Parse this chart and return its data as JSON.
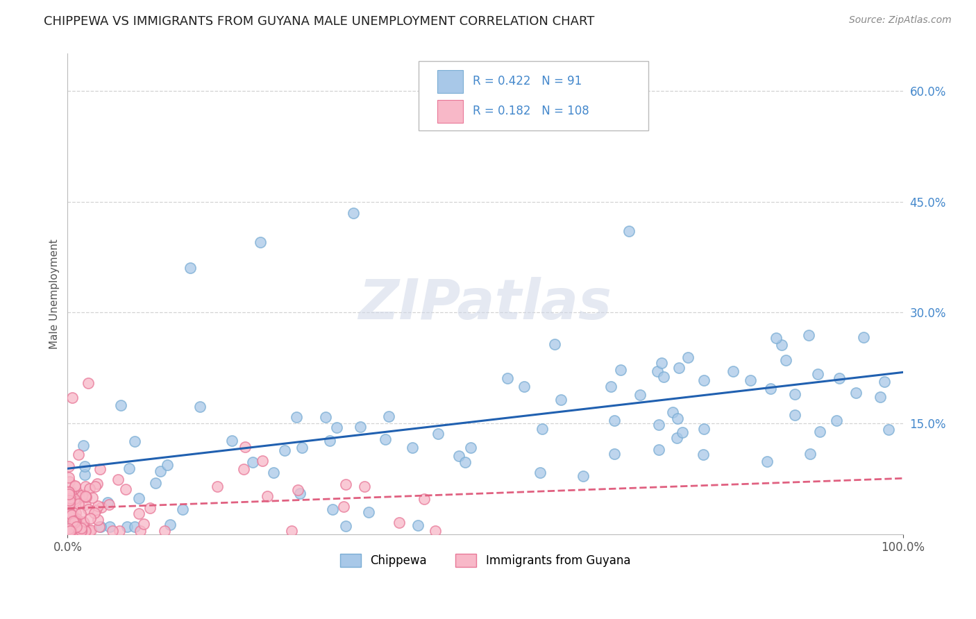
{
  "title": "CHIPPEWA VS IMMIGRANTS FROM GUYANA MALE UNEMPLOYMENT CORRELATION CHART",
  "source_text": "Source: ZipAtlas.com",
  "ylabel": "Male Unemployment",
  "watermark": "ZIPatlas",
  "xmin": 0.0,
  "xmax": 1.0,
  "ymin": 0.0,
  "ymax": 0.65,
  "ytick_vals": [
    0.15,
    0.3,
    0.45,
    0.6
  ],
  "ytick_labels": [
    "15.0%",
    "30.0%",
    "45.0%",
    "60.0%"
  ],
  "xtick_vals": [
    0.0,
    1.0
  ],
  "xtick_labels": [
    "0.0%",
    "100.0%"
  ],
  "chippewa_color": "#a8c8e8",
  "chippewa_edge": "#7aadd4",
  "guyana_color": "#f8b8c8",
  "guyana_edge": "#e87898",
  "chippewa_line_color": "#2060b0",
  "guyana_line_color": "#e06080",
  "legend_R1": "0.422",
  "legend_N1": "91",
  "legend_R2": "0.182",
  "legend_N2": "108",
  "legend_label1": "Chippewa",
  "legend_label2": "Immigrants from Guyana",
  "background_color": "#ffffff",
  "grid_color": "#c8c8c8",
  "title_fontsize": 13,
  "axis_label_color": "#4488cc",
  "tick_color": "#555555"
}
